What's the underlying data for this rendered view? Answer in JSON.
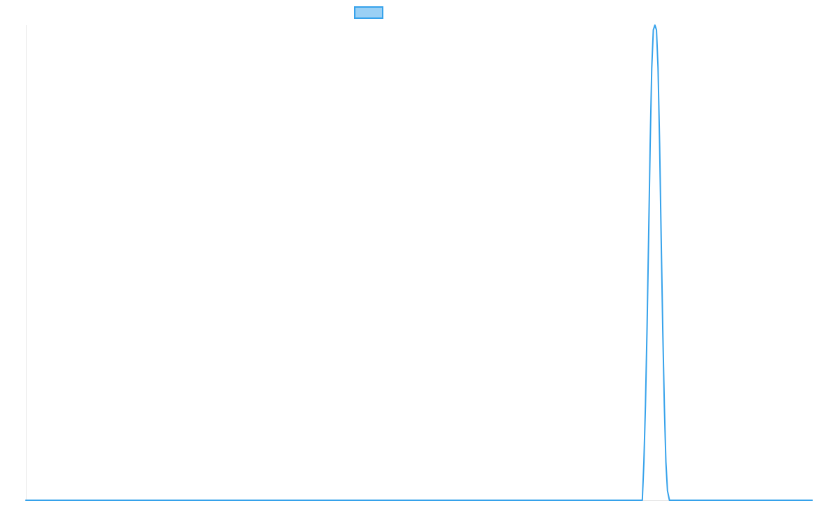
{
  "chart_data": {
    "type": "line",
    "title": "",
    "xlabel": "",
    "ylabel": "",
    "grid": false,
    "legend_placement": "top",
    "xlim": [
      0,
      1
    ],
    "ylim": [
      0,
      1
    ],
    "series": [
      {
        "name": "",
        "color": "#36a2eb",
        "fill_color": "#9ad0f5",
        "points": [
          [
            0.0,
            0.0
          ],
          [
            0.784,
            0.0
          ],
          [
            0.786,
            0.08
          ],
          [
            0.788,
            0.2
          ],
          [
            0.79,
            0.36
          ],
          [
            0.792,
            0.55
          ],
          [
            0.794,
            0.75
          ],
          [
            0.796,
            0.91
          ],
          [
            0.798,
            0.99
          ],
          [
            0.8,
            1.0
          ],
          [
            0.802,
            0.99
          ],
          [
            0.804,
            0.91
          ],
          [
            0.806,
            0.75
          ],
          [
            0.808,
            0.55
          ],
          [
            0.81,
            0.36
          ],
          [
            0.812,
            0.2
          ],
          [
            0.814,
            0.08
          ],
          [
            0.816,
            0.02
          ],
          [
            0.8185,
            0.0
          ],
          [
            1.0,
            0.0
          ]
        ]
      }
    ]
  }
}
